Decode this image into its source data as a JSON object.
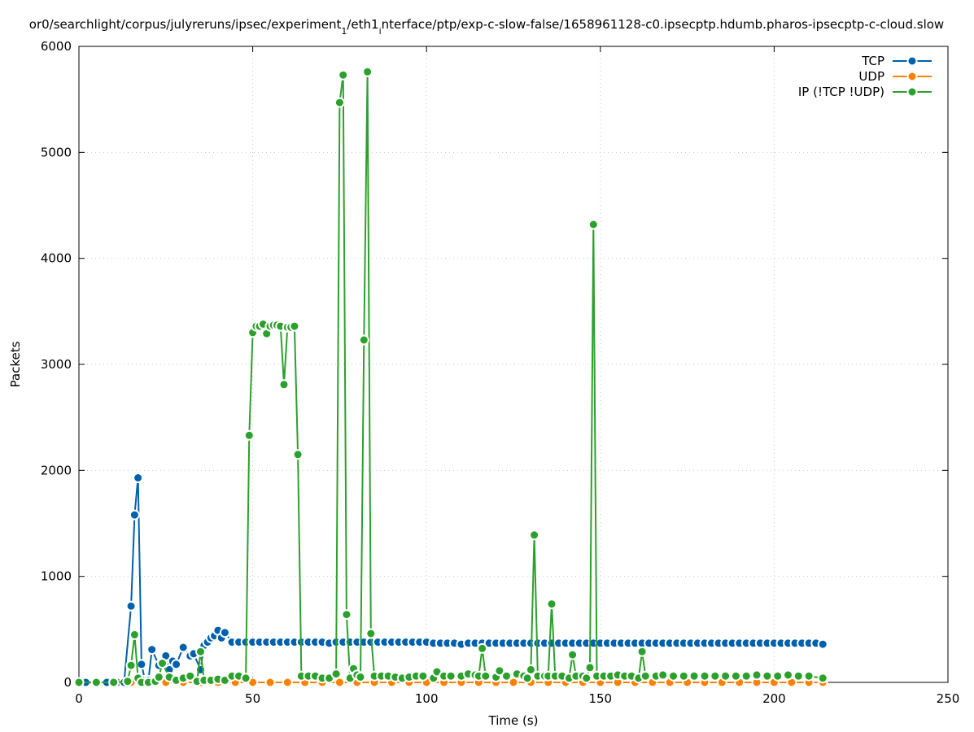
{
  "chart_data": {
    "type": "line",
    "title": {
      "before": "or0/searchlight/corpus/julyreruns/ipsec/experiment",
      "sub1": "1",
      "middle": "/eth1",
      "sub2": "i",
      "after": "nterface/ptp/exp-c-slow-false/1658961128-c0.ipsecptp.hdumb.pharos-ipsecptp-c-cloud.slow"
    },
    "xlabel": "Time (s)",
    "ylabel": "Packets",
    "xlim": [
      0,
      250
    ],
    "ylim": [
      0,
      6000
    ],
    "xticks": [
      0,
      50,
      100,
      150,
      200,
      250
    ],
    "yticks": [
      0,
      1000,
      2000,
      3000,
      4000,
      5000,
      6000
    ],
    "grid": true,
    "legend_position": "top-right",
    "series": [
      {
        "name": "TCP",
        "color": "#0060ad",
        "points": [
          [
            0,
            0
          ],
          [
            2,
            0
          ],
          [
            5,
            0
          ],
          [
            8,
            0
          ],
          [
            11,
            0
          ],
          [
            13,
            0
          ],
          [
            15,
            720
          ],
          [
            16,
            1580
          ],
          [
            17,
            1930
          ],
          [
            18,
            170
          ],
          [
            19,
            20
          ],
          [
            20,
            20
          ],
          [
            21,
            310
          ],
          [
            23,
            160
          ],
          [
            25,
            250
          ],
          [
            26,
            120
          ],
          [
            27,
            200
          ],
          [
            28,
            170
          ],
          [
            30,
            330
          ],
          [
            32,
            250
          ],
          [
            33,
            270
          ],
          [
            35,
            120
          ],
          [
            36,
            350
          ],
          [
            37,
            380
          ],
          [
            38,
            420
          ],
          [
            39,
            440
          ],
          [
            40,
            490
          ],
          [
            41,
            420
          ],
          [
            42,
            470
          ],
          [
            44,
            380
          ],
          [
            46,
            380
          ],
          [
            48,
            380
          ],
          [
            50,
            380
          ],
          [
            52,
            380
          ],
          [
            54,
            380
          ],
          [
            56,
            380
          ],
          [
            58,
            380
          ],
          [
            60,
            380
          ],
          [
            62,
            380
          ],
          [
            64,
            380
          ],
          [
            66,
            380
          ],
          [
            68,
            380
          ],
          [
            70,
            380
          ],
          [
            72,
            370
          ],
          [
            74,
            380
          ],
          [
            76,
            380
          ],
          [
            78,
            380
          ],
          [
            80,
            380
          ],
          [
            82,
            380
          ],
          [
            84,
            380
          ],
          [
            86,
            380
          ],
          [
            88,
            380
          ],
          [
            90,
            380
          ],
          [
            92,
            380
          ],
          [
            94,
            380
          ],
          [
            96,
            380
          ],
          [
            98,
            380
          ],
          [
            100,
            380
          ],
          [
            102,
            370
          ],
          [
            104,
            370
          ],
          [
            106,
            370
          ],
          [
            108,
            370
          ],
          [
            110,
            360
          ],
          [
            112,
            370
          ],
          [
            114,
            370
          ],
          [
            116,
            370
          ],
          [
            118,
            370
          ],
          [
            120,
            370
          ],
          [
            122,
            370
          ],
          [
            124,
            370
          ],
          [
            126,
            370
          ],
          [
            128,
            370
          ],
          [
            130,
            370
          ],
          [
            132,
            370
          ],
          [
            134,
            370
          ],
          [
            136,
            370
          ],
          [
            138,
            370
          ],
          [
            140,
            370
          ],
          [
            142,
            370
          ],
          [
            144,
            370
          ],
          [
            146,
            370
          ],
          [
            148,
            370
          ],
          [
            150,
            370
          ],
          [
            152,
            370
          ],
          [
            154,
            370
          ],
          [
            156,
            370
          ],
          [
            158,
            370
          ],
          [
            160,
            370
          ],
          [
            162,
            370
          ],
          [
            164,
            370
          ],
          [
            166,
            370
          ],
          [
            168,
            370
          ],
          [
            170,
            370
          ],
          [
            172,
            370
          ],
          [
            174,
            370
          ],
          [
            176,
            370
          ],
          [
            178,
            370
          ],
          [
            180,
            370
          ],
          [
            182,
            370
          ],
          [
            184,
            370
          ],
          [
            186,
            370
          ],
          [
            188,
            370
          ],
          [
            190,
            370
          ],
          [
            192,
            370
          ],
          [
            194,
            370
          ],
          [
            196,
            370
          ],
          [
            198,
            370
          ],
          [
            200,
            370
          ],
          [
            202,
            370
          ],
          [
            204,
            370
          ],
          [
            206,
            370
          ],
          [
            208,
            370
          ],
          [
            210,
            370
          ],
          [
            212,
            370
          ],
          [
            214,
            360
          ]
        ]
      },
      {
        "name": "UDP",
        "color": "#ff8000",
        "points": [
          [
            0,
            0
          ],
          [
            5,
            0
          ],
          [
            10,
            0
          ],
          [
            15,
            0
          ],
          [
            20,
            0
          ],
          [
            25,
            0
          ],
          [
            30,
            0
          ],
          [
            35,
            0
          ],
          [
            40,
            0
          ],
          [
            45,
            0
          ],
          [
            50,
            0
          ],
          [
            55,
            0
          ],
          [
            60,
            0
          ],
          [
            65,
            0
          ],
          [
            70,
            0
          ],
          [
            75,
            0
          ],
          [
            80,
            0
          ],
          [
            85,
            0
          ],
          [
            90,
            0
          ],
          [
            95,
            0
          ],
          [
            100,
            0
          ],
          [
            105,
            0
          ],
          [
            110,
            0
          ],
          [
            115,
            0
          ],
          [
            120,
            0
          ],
          [
            125,
            0
          ],
          [
            130,
            0
          ],
          [
            135,
            0
          ],
          [
            140,
            0
          ],
          [
            145,
            0
          ],
          [
            150,
            0
          ],
          [
            155,
            0
          ],
          [
            160,
            0
          ],
          [
            165,
            0
          ],
          [
            170,
            0
          ],
          [
            175,
            0
          ],
          [
            180,
            0
          ],
          [
            185,
            0
          ],
          [
            190,
            0
          ],
          [
            195,
            0
          ],
          [
            200,
            0
          ],
          [
            205,
            0
          ],
          [
            210,
            0
          ],
          [
            214,
            0
          ]
        ]
      },
      {
        "name": "IP (!TCP  !UDP)",
        "color": "#2ca02c",
        "points": [
          [
            0,
            0
          ],
          [
            5,
            0
          ],
          [
            10,
            0
          ],
          [
            14,
            10
          ],
          [
            15,
            160
          ],
          [
            16,
            450
          ],
          [
            17,
            40
          ],
          [
            18,
            0
          ],
          [
            20,
            0
          ],
          [
            22,
            10
          ],
          [
            23,
            50
          ],
          [
            24,
            180
          ],
          [
            26,
            50
          ],
          [
            28,
            20
          ],
          [
            30,
            40
          ],
          [
            32,
            60
          ],
          [
            34,
            10
          ],
          [
            35,
            290
          ],
          [
            36,
            20
          ],
          [
            38,
            20
          ],
          [
            40,
            30
          ],
          [
            42,
            20
          ],
          [
            44,
            60
          ],
          [
            46,
            60
          ],
          [
            48,
            40
          ],
          [
            49,
            2330
          ],
          [
            50,
            3300
          ],
          [
            51,
            3360
          ],
          [
            52,
            3360
          ],
          [
            53,
            3380
          ],
          [
            54,
            3290
          ],
          [
            55,
            3360
          ],
          [
            56,
            3370
          ],
          [
            57,
            3370
          ],
          [
            58,
            3360
          ],
          [
            59,
            2810
          ],
          [
            60,
            3350
          ],
          [
            61,
            3350
          ],
          [
            62,
            3360
          ],
          [
            63,
            2150
          ],
          [
            64,
            60
          ],
          [
            66,
            60
          ],
          [
            68,
            60
          ],
          [
            70,
            40
          ],
          [
            72,
            40
          ],
          [
            74,
            80
          ],
          [
            75,
            5470
          ],
          [
            76,
            5730
          ],
          [
            77,
            640
          ],
          [
            78,
            40
          ],
          [
            79,
            130
          ],
          [
            80,
            70
          ],
          [
            81,
            50
          ],
          [
            82,
            3230
          ],
          [
            83,
            5760
          ],
          [
            84,
            460
          ],
          [
            85,
            60
          ],
          [
            87,
            60
          ],
          [
            89,
            60
          ],
          [
            91,
            50
          ],
          [
            93,
            40
          ],
          [
            95,
            50
          ],
          [
            97,
            60
          ],
          [
            99,
            60
          ],
          [
            102,
            40
          ],
          [
            103,
            100
          ],
          [
            105,
            60
          ],
          [
            107,
            60
          ],
          [
            110,
            60
          ],
          [
            112,
            80
          ],
          [
            114,
            70
          ],
          [
            115,
            60
          ],
          [
            116,
            320
          ],
          [
            117,
            60
          ],
          [
            120,
            50
          ],
          [
            121,
            110
          ],
          [
            123,
            60
          ],
          [
            126,
            80
          ],
          [
            128,
            60
          ],
          [
            129,
            40
          ],
          [
            130,
            120
          ],
          [
            131,
            1390
          ],
          [
            132,
            60
          ],
          [
            134,
            60
          ],
          [
            135,
            60
          ],
          [
            136,
            740
          ],
          [
            137,
            60
          ],
          [
            139,
            60
          ],
          [
            141,
            40
          ],
          [
            142,
            260
          ],
          [
            143,
            60
          ],
          [
            145,
            60
          ],
          [
            146,
            40
          ],
          [
            147,
            140
          ],
          [
            148,
            4320
          ],
          [
            149,
            60
          ],
          [
            151,
            60
          ],
          [
            153,
            60
          ],
          [
            155,
            70
          ],
          [
            157,
            60
          ],
          [
            159,
            60
          ],
          [
            161,
            40
          ],
          [
            162,
            290
          ],
          [
            163,
            60
          ],
          [
            166,
            60
          ],
          [
            168,
            70
          ],
          [
            171,
            60
          ],
          [
            174,
            60
          ],
          [
            177,
            60
          ],
          [
            180,
            60
          ],
          [
            183,
            60
          ],
          [
            186,
            60
          ],
          [
            189,
            60
          ],
          [
            192,
            60
          ],
          [
            195,
            70
          ],
          [
            198,
            60
          ],
          [
            201,
            60
          ],
          [
            204,
            70
          ],
          [
            207,
            60
          ],
          [
            210,
            60
          ],
          [
            214,
            40
          ]
        ]
      }
    ]
  }
}
